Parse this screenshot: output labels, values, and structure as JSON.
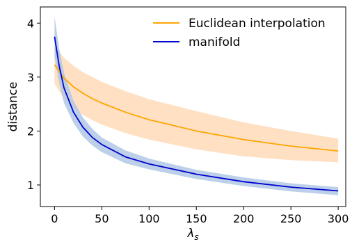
{
  "chart_data": {
    "type": "line",
    "xlabel_main": "λ",
    "xlabel_sub": "s",
    "ylabel": "distance",
    "xlim": [
      -15,
      308
    ],
    "ylim": [
      0.6,
      4.3
    ],
    "xticks": [
      0,
      50,
      100,
      150,
      200,
      250,
      300
    ],
    "yticks": [
      1,
      2,
      3,
      4
    ],
    "grid": false,
    "legend": "top-right",
    "series": [
      {
        "name": "Euclidean interpolation",
        "color": "#ffa500",
        "band_color": "#ffdab9",
        "x": [
          0,
          10,
          20,
          30,
          40,
          50,
          75,
          100,
          150,
          200,
          250,
          300
        ],
        "y": [
          3.23,
          2.98,
          2.82,
          2.7,
          2.6,
          2.52,
          2.35,
          2.21,
          2.0,
          1.84,
          1.72,
          1.63
        ],
        "upper": [
          3.57,
          3.36,
          3.21,
          3.09,
          3.0,
          2.91,
          2.74,
          2.59,
          2.37,
          2.16,
          2.0,
          1.86
        ],
        "lower": [
          2.88,
          2.59,
          2.42,
          2.3,
          2.2,
          2.12,
          1.96,
          1.84,
          1.66,
          1.53,
          1.46,
          1.42
        ]
      },
      {
        "name": "manifold",
        "color": "#0000cd",
        "band_color": "#b0c8e6",
        "x": [
          0,
          5,
          10,
          20,
          30,
          40,
          50,
          75,
          100,
          150,
          200,
          250,
          300
        ],
        "y": [
          3.75,
          3.2,
          2.8,
          2.35,
          2.07,
          1.88,
          1.75,
          1.52,
          1.39,
          1.2,
          1.06,
          0.96,
          0.89
        ],
        "upper": [
          4.12,
          3.52,
          3.08,
          2.56,
          2.25,
          2.04,
          1.88,
          1.64,
          1.49,
          1.28,
          1.14,
          1.03,
          0.96
        ],
        "lower": [
          3.38,
          2.88,
          2.52,
          2.15,
          1.9,
          1.73,
          1.61,
          1.4,
          1.29,
          1.11,
          0.98,
          0.88,
          0.81
        ]
      }
    ]
  }
}
